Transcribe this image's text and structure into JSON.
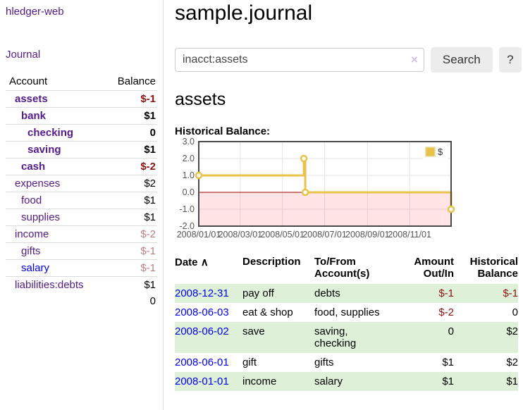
{
  "colors": {
    "visited_link": "#551a8b",
    "unvisited_link": "#0000ee",
    "neg_strong": "#8b1313",
    "neg_soft": "#bf8080",
    "row_green": "#dff0d8",
    "chart_gold": "#e8c24a"
  },
  "sidebar": {
    "app_title": "hledger-web",
    "journal_link": "Journal",
    "accounts_table": {
      "headers": [
        "Account",
        "Balance"
      ],
      "rows": [
        {
          "account": "assets",
          "balance": "$-1",
          "depth": 0,
          "bold": true,
          "link": "visited",
          "value_style": "neg_strong"
        },
        {
          "account": "bank",
          "balance": "$1",
          "depth": 1,
          "bold": true,
          "link": "visited",
          "value_style": "normal"
        },
        {
          "account": "checking",
          "balance": "0",
          "depth": 2,
          "bold": true,
          "link": "visited",
          "value_style": "normal"
        },
        {
          "account": "saving",
          "balance": "$1",
          "depth": 2,
          "bold": true,
          "link": "visited",
          "value_style": "normal"
        },
        {
          "account": "cash",
          "balance": "$-2",
          "depth": 1,
          "bold": true,
          "link": "visited",
          "value_style": "neg_strong"
        },
        {
          "account": "expenses",
          "balance": "$2",
          "depth": 0,
          "bold": false,
          "link": "visited",
          "value_style": "normal"
        },
        {
          "account": "food",
          "balance": "$1",
          "depth": 1,
          "bold": false,
          "link": "visited",
          "value_style": "normal"
        },
        {
          "account": "supplies",
          "balance": "$1",
          "depth": 1,
          "bold": false,
          "link": "visited",
          "value_style": "normal"
        },
        {
          "account": "income",
          "balance": "$-2",
          "depth": 0,
          "bold": false,
          "link": "visited",
          "value_style": "neg_soft"
        },
        {
          "account": "gifts",
          "balance": "$-1",
          "depth": 1,
          "bold": false,
          "link": "visited",
          "value_style": "neg_soft"
        },
        {
          "account": "salary",
          "balance": "$-1",
          "depth": 1,
          "bold": false,
          "link": "unvisited",
          "value_style": "neg_soft"
        },
        {
          "account": "liabilities:debts",
          "balance": "$1",
          "depth": 0,
          "bold": false,
          "link": "visited",
          "value_style": "normal"
        }
      ],
      "total": "0"
    }
  },
  "header": {
    "title": "sample.journal"
  },
  "search": {
    "value": "inacct:assets",
    "clear_icon": "×",
    "search_label": "Search",
    "help_label": "?"
  },
  "account_page": {
    "heading": "assets",
    "chart_label": "Historical Balance:"
  },
  "chart_data": {
    "type": "line",
    "title": "Historical Balance:",
    "step": true,
    "series": [
      {
        "name": "$",
        "color": "#e8c24a",
        "points": [
          [
            "2008-01-01",
            1
          ],
          [
            "2008-06-01",
            2
          ],
          [
            "2008-06-03",
            0
          ],
          [
            "2008-12-31",
            -1
          ]
        ]
      }
    ],
    "xlim": [
      "2008-01-01",
      "2008-12-31"
    ],
    "ylim": [
      -2,
      3
    ],
    "x_tick_labels": [
      "2008/01/01",
      "2008/03/01",
      "2008/05/01",
      "2008/07/01",
      "2008/09/01",
      "2008/11/01"
    ],
    "y_tick_labels": [
      "3.0",
      "2.0",
      "1.0",
      "0.0",
      "-1.0",
      "-2.0"
    ],
    "grid": true,
    "legend_position": "top-right",
    "legend_label": "$",
    "negative_region_fill": "rgba(255,0,0,0.10)",
    "zero_line_color": "#990000",
    "border_color": "#4a4a4a",
    "grid_color": "#e3e3e3",
    "tick_label_color": "#545454"
  },
  "transactions": {
    "headers": {
      "date": "Date",
      "sort_icon": "∧",
      "description": "Description",
      "account": "To/From Account(s)",
      "amount": "Amount Out/In",
      "balance": "Historical Balance"
    },
    "rows": [
      {
        "date": "2008-12-31",
        "description": "pay off",
        "accounts": "debts",
        "amount": "$-1",
        "amount_style": "neg",
        "balance": "$-1",
        "balance_style": "neg"
      },
      {
        "date": "2008-06-03",
        "description": "eat & shop",
        "accounts": "food, supplies",
        "amount": "$-2",
        "amount_style": "neg",
        "balance": "0",
        "balance_style": "normal"
      },
      {
        "date": "2008-06-02",
        "description": "save",
        "accounts": "saving, checking",
        "amount": "0",
        "amount_style": "normal",
        "balance": "$2",
        "balance_style": "normal"
      },
      {
        "date": "2008-06-01",
        "description": "gift",
        "accounts": "gifts",
        "amount": "$1",
        "amount_style": "normal",
        "balance": "$2",
        "balance_style": "normal"
      },
      {
        "date": "2008-01-01",
        "description": "income",
        "accounts": "salary",
        "amount": "$1",
        "amount_style": "normal",
        "balance": "$1",
        "balance_style": "normal"
      }
    ]
  }
}
